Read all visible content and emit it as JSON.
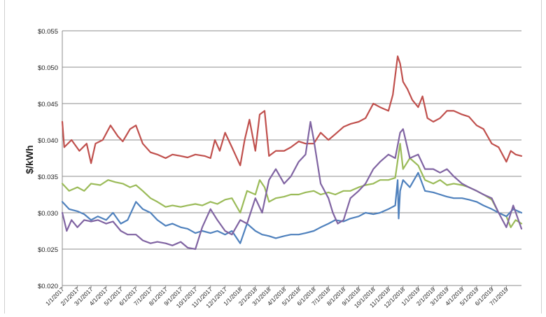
{
  "chart_data": {
    "type": "line",
    "title": "",
    "xlabel": "",
    "ylabel": "$/kWh",
    "ylim": [
      0.02,
      0.055
    ],
    "y_ticks": [
      0.02,
      0.025,
      0.03,
      0.035,
      0.04,
      0.045,
      0.05,
      0.055
    ],
    "y_tick_labels": [
      "$0.020",
      "$0.025",
      "$0.030",
      "$0.035",
      "$0.040",
      "$0.045",
      "$0.050",
      "$0.055"
    ],
    "x_start": "2017-01-01",
    "x_end": "2019-08-01",
    "x_tick_labels": [
      "1/1/2017",
      "2/1/2017",
      "3/1/2017",
      "4/1/2017",
      "5/1/2017",
      "6/1/2017",
      "7/1/2017",
      "8/1/2017",
      "9/1/2017",
      "10/1/2017",
      "11/1/2017",
      "12/1/2017",
      "1/1/2018",
      "2/1/2018",
      "3/1/2018",
      "4/1/2018",
      "5/1/2018",
      "6/1/2018",
      "7/1/2018",
      "8/1/2018",
      "9/1/2018",
      "10/1/2018",
      "11/1/2018",
      "12/1/2018",
      "1/1/2019",
      "2/1/2019",
      "3/1/2019",
      "4/1/2019",
      "5/1/2019",
      "6/1/2019",
      "7/1/2019"
    ],
    "grid": "horizontal",
    "legend": "none",
    "series": [
      {
        "color": "#c0504d",
        "x": [
          "2017-01-01",
          "2017-01-05",
          "2017-01-20",
          "2017-02-05",
          "2017-02-20",
          "2017-03-01",
          "2017-03-10",
          "2017-03-25",
          "2017-04-10",
          "2017-04-25",
          "2017-05-05",
          "2017-05-20",
          "2017-06-01",
          "2017-06-15",
          "2017-07-01",
          "2017-07-15",
          "2017-08-01",
          "2017-08-15",
          "2017-09-01",
          "2017-09-15",
          "2017-10-01",
          "2017-10-20",
          "2017-11-01",
          "2017-11-10",
          "2017-11-20",
          "2017-12-01",
          "2017-12-15",
          "2018-01-01",
          "2018-01-10",
          "2018-01-20",
          "2018-02-01",
          "2018-02-10",
          "2018-02-20",
          "2018-03-01",
          "2018-03-15",
          "2018-04-01",
          "2018-04-15",
          "2018-05-01",
          "2018-05-15",
          "2018-06-01",
          "2018-06-15",
          "2018-07-01",
          "2018-07-15",
          "2018-08-01",
          "2018-08-15",
          "2018-09-01",
          "2018-09-15",
          "2018-10-01",
          "2018-10-15",
          "2018-11-01",
          "2018-11-10",
          "2018-11-20",
          "2018-11-25",
          "2018-12-01",
          "2018-12-10",
          "2018-12-20",
          "2019-01-01",
          "2019-01-10",
          "2019-01-20",
          "2019-02-01",
          "2019-02-15",
          "2019-03-01",
          "2019-03-15",
          "2019-04-01",
          "2019-04-15",
          "2019-05-01",
          "2019-05-15",
          "2019-06-01",
          "2019-06-15",
          "2019-07-01",
          "2019-07-10",
          "2019-07-20",
          "2019-08-01"
        ],
        "values": [
          0.0425,
          0.039,
          0.04,
          0.0385,
          0.0395,
          0.0368,
          0.0395,
          0.04,
          0.042,
          0.0405,
          0.0398,
          0.0415,
          0.042,
          0.0395,
          0.0383,
          0.038,
          0.0375,
          0.038,
          0.0378,
          0.0376,
          0.038,
          0.0378,
          0.0375,
          0.04,
          0.0385,
          0.041,
          0.039,
          0.0365,
          0.04,
          0.0428,
          0.0385,
          0.0435,
          0.044,
          0.0378,
          0.0385,
          0.0385,
          0.039,
          0.0398,
          0.0395,
          0.0395,
          0.041,
          0.04,
          0.0408,
          0.0418,
          0.0422,
          0.0425,
          0.043,
          0.045,
          0.0445,
          0.044,
          0.0462,
          0.0515,
          0.0505,
          0.048,
          0.047,
          0.0455,
          0.0445,
          0.046,
          0.043,
          0.0425,
          0.043,
          0.044,
          0.044,
          0.0435,
          0.0432,
          0.042,
          0.0415,
          0.0395,
          0.039,
          0.037,
          0.0385,
          0.038,
          0.0378
        ]
      },
      {
        "color": "#9bbb59",
        "x": [
          "2017-01-01",
          "2017-01-15",
          "2017-02-01",
          "2017-02-15",
          "2017-03-01",
          "2017-03-20",
          "2017-04-05",
          "2017-04-20",
          "2017-05-05",
          "2017-05-20",
          "2017-06-01",
          "2017-06-15",
          "2017-07-01",
          "2017-07-15",
          "2017-08-01",
          "2017-08-15",
          "2017-09-01",
          "2017-09-15",
          "2017-10-01",
          "2017-10-15",
          "2017-11-01",
          "2017-11-15",
          "2017-12-01",
          "2017-12-15",
          "2018-01-01",
          "2018-01-15",
          "2018-02-01",
          "2018-02-10",
          "2018-02-20",
          "2018-03-01",
          "2018-03-15",
          "2018-04-01",
          "2018-04-15",
          "2018-05-01",
          "2018-05-15",
          "2018-06-01",
          "2018-06-15",
          "2018-07-01",
          "2018-07-15",
          "2018-08-01",
          "2018-08-15",
          "2018-09-01",
          "2018-09-15",
          "2018-10-01",
          "2018-10-15",
          "2018-11-01",
          "2018-11-15",
          "2018-11-25",
          "2018-12-01",
          "2018-12-15",
          "2019-01-01",
          "2019-01-15",
          "2019-02-01",
          "2019-02-15",
          "2019-03-01",
          "2019-03-15",
          "2019-04-01",
          "2019-04-15",
          "2019-05-01",
          "2019-05-15",
          "2019-06-01",
          "2019-06-15",
          "2019-07-01",
          "2019-07-10",
          "2019-07-20",
          "2019-08-01"
        ],
        "values": [
          0.034,
          0.033,
          0.0335,
          0.033,
          0.034,
          0.0338,
          0.0345,
          0.0342,
          0.034,
          0.0335,
          0.0338,
          0.033,
          0.032,
          0.0315,
          0.0308,
          0.031,
          0.0308,
          0.031,
          0.0312,
          0.031,
          0.0315,
          0.0312,
          0.0318,
          0.032,
          0.03,
          0.033,
          0.0325,
          0.0345,
          0.0335,
          0.0315,
          0.032,
          0.0322,
          0.0325,
          0.0325,
          0.0328,
          0.033,
          0.0325,
          0.0328,
          0.0325,
          0.033,
          0.033,
          0.0335,
          0.0338,
          0.034,
          0.0345,
          0.0345,
          0.0348,
          0.0395,
          0.036,
          0.0375,
          0.0365,
          0.0345,
          0.034,
          0.0345,
          0.0338,
          0.034,
          0.0338,
          0.0335,
          0.033,
          0.0325,
          0.0318,
          0.03,
          0.0295,
          0.028,
          0.029,
          0.0285
        ]
      },
      {
        "color": "#4f81bd",
        "x": [
          "2017-01-01",
          "2017-01-15",
          "2017-02-01",
          "2017-02-15",
          "2017-03-01",
          "2017-03-15",
          "2017-04-01",
          "2017-04-15",
          "2017-05-01",
          "2017-05-15",
          "2017-06-01",
          "2017-06-15",
          "2017-07-01",
          "2017-07-15",
          "2017-08-01",
          "2017-08-15",
          "2017-09-01",
          "2017-09-15",
          "2017-10-01",
          "2017-10-15",
          "2017-11-01",
          "2017-11-15",
          "2017-12-01",
          "2017-12-15",
          "2018-01-01",
          "2018-01-15",
          "2018-02-01",
          "2018-02-15",
          "2018-03-01",
          "2018-03-15",
          "2018-04-01",
          "2018-04-15",
          "2018-05-01",
          "2018-05-15",
          "2018-06-01",
          "2018-06-15",
          "2018-07-01",
          "2018-07-15",
          "2018-08-01",
          "2018-08-15",
          "2018-09-01",
          "2018-09-15",
          "2018-10-01",
          "2018-10-15",
          "2018-11-01",
          "2018-11-15",
          "2018-11-20",
          "2018-11-22",
          "2018-11-25",
          "2018-12-01",
          "2018-12-15",
          "2019-01-01",
          "2019-01-15",
          "2019-02-01",
          "2019-02-15",
          "2019-03-01",
          "2019-03-15",
          "2019-04-01",
          "2019-04-15",
          "2019-05-01",
          "2019-05-15",
          "2019-06-01",
          "2019-06-15",
          "2019-07-01",
          "2019-07-15",
          "2019-08-01"
        ],
        "values": [
          0.0315,
          0.0305,
          0.0302,
          0.0298,
          0.029,
          0.0295,
          0.029,
          0.03,
          0.0285,
          0.029,
          0.0315,
          0.0305,
          0.03,
          0.029,
          0.0282,
          0.0285,
          0.028,
          0.0278,
          0.0272,
          0.0275,
          0.0272,
          0.0275,
          0.027,
          0.0275,
          0.0258,
          0.0285,
          0.0275,
          0.027,
          0.0268,
          0.0265,
          0.0268,
          0.027,
          0.027,
          0.0272,
          0.0275,
          0.028,
          0.0285,
          0.029,
          0.0288,
          0.0292,
          0.0295,
          0.03,
          0.0298,
          0.03,
          0.0305,
          0.031,
          0.0345,
          0.0292,
          0.033,
          0.0345,
          0.0335,
          0.0355,
          0.033,
          0.0328,
          0.0325,
          0.0322,
          0.032,
          0.032,
          0.0318,
          0.0315,
          0.031,
          0.0305,
          0.03,
          0.0295,
          0.0305,
          0.03
        ]
      },
      {
        "color": "#8064a2",
        "x": [
          "2017-01-01",
          "2017-01-10",
          "2017-01-20",
          "2017-02-01",
          "2017-02-15",
          "2017-03-01",
          "2017-03-15",
          "2017-04-01",
          "2017-04-15",
          "2017-05-01",
          "2017-05-15",
          "2017-06-01",
          "2017-06-15",
          "2017-07-01",
          "2017-07-15",
          "2017-08-01",
          "2017-08-15",
          "2017-09-01",
          "2017-09-15",
          "2017-10-01",
          "2017-10-15",
          "2017-11-01",
          "2017-11-15",
          "2017-12-01",
          "2017-12-15",
          "2018-01-01",
          "2018-01-15",
          "2018-02-01",
          "2018-02-15",
          "2018-03-01",
          "2018-03-15",
          "2018-04-01",
          "2018-04-15",
          "2018-05-01",
          "2018-05-15",
          "2018-05-25",
          "2018-06-01",
          "2018-06-15",
          "2018-07-01",
          "2018-07-10",
          "2018-07-20",
          "2018-08-01",
          "2018-08-15",
          "2018-09-01",
          "2018-09-15",
          "2018-10-01",
          "2018-10-15",
          "2018-11-01",
          "2018-11-15",
          "2018-11-25",
          "2018-12-01",
          "2018-12-15",
          "2019-01-01",
          "2019-01-15",
          "2019-02-01",
          "2019-02-15",
          "2019-03-01",
          "2019-03-15",
          "2019-04-01",
          "2019-04-15",
          "2019-05-01",
          "2019-05-15",
          "2019-06-01",
          "2019-06-15",
          "2019-07-01",
          "2019-07-15",
          "2019-08-01"
        ],
        "values": [
          0.03,
          0.0275,
          0.029,
          0.028,
          0.029,
          0.0288,
          0.029,
          0.0285,
          0.0288,
          0.0275,
          0.027,
          0.027,
          0.0262,
          0.0258,
          0.026,
          0.0258,
          0.0255,
          0.026,
          0.0252,
          0.025,
          0.028,
          0.0305,
          0.029,
          0.0275,
          0.027,
          0.029,
          0.0285,
          0.032,
          0.03,
          0.0345,
          0.036,
          0.034,
          0.035,
          0.037,
          0.038,
          0.0425,
          0.04,
          0.034,
          0.032,
          0.03,
          0.0285,
          0.029,
          0.032,
          0.033,
          0.034,
          0.036,
          0.037,
          0.038,
          0.0375,
          0.041,
          0.0415,
          0.0375,
          0.038,
          0.036,
          0.036,
          0.0355,
          0.036,
          0.035,
          0.034,
          0.0335,
          0.033,
          0.0325,
          0.032,
          0.03,
          0.028,
          0.031,
          0.0278
        ]
      }
    ]
  }
}
